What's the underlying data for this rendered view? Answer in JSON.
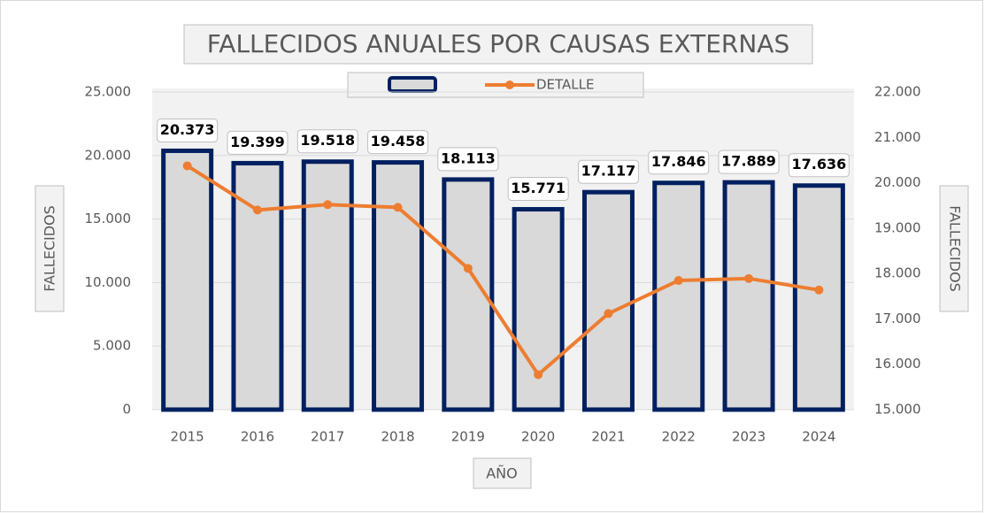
{
  "chart_data": {
    "type": "bar_line",
    "title": "FALLECIDOS ANUALES POR CAUSAS EXTERNAS",
    "x_label": "AÑO",
    "y_label": "FALLECIDOS",
    "y2_label": "FALLECIDOS",
    "categories": [
      "2015",
      "2016",
      "2017",
      "2018",
      "2019",
      "2020",
      "2021",
      "2022",
      "2023",
      "2024"
    ],
    "series": [
      {
        "type": "bar",
        "color": "#d9d9d9",
        "edge_color": "#002060",
        "values": [
          20373,
          19399,
          19518,
          19458,
          18113,
          15771,
          17117,
          17846,
          17889,
          17636
        ],
        "value_labels": [
          "20.373",
          "19.399",
          "19.518",
          "19.458",
          "18.113",
          "15.771",
          "17.117",
          "17.846",
          "17.889",
          "17.636"
        ]
      },
      {
        "type": "line",
        "name": "DETALLE",
        "color": "#ed7d31",
        "axis": "y2",
        "values": [
          20373,
          19399,
          19518,
          19458,
          18113,
          15771,
          17117,
          17846,
          17889,
          17636
        ]
      }
    ],
    "ylim": [
      0,
      25000
    ],
    "yticks": [
      {
        "value": 0,
        "label": "0"
      },
      {
        "value": 5000,
        "label": "5.000"
      },
      {
        "value": 10000,
        "label": "10.000"
      },
      {
        "value": 15000,
        "label": "15.000"
      },
      {
        "value": 20000,
        "label": "20.000"
      },
      {
        "value": 25000,
        "label": "25.000"
      }
    ],
    "y2lim": [
      15000,
      22000
    ],
    "y2ticks": [
      {
        "value": 15000,
        "label": "15.000"
      },
      {
        "value": 16000,
        "label": "16.000"
      },
      {
        "value": 17000,
        "label": "17.000"
      },
      {
        "value": 18000,
        "label": "18.000"
      },
      {
        "value": 19000,
        "label": "19.000"
      },
      {
        "value": 20000,
        "label": "20.000"
      },
      {
        "value": 21000,
        "label": "21.000"
      },
      {
        "value": 22000,
        "label": "22.000"
      }
    ],
    "grid": true,
    "legend": "top"
  }
}
